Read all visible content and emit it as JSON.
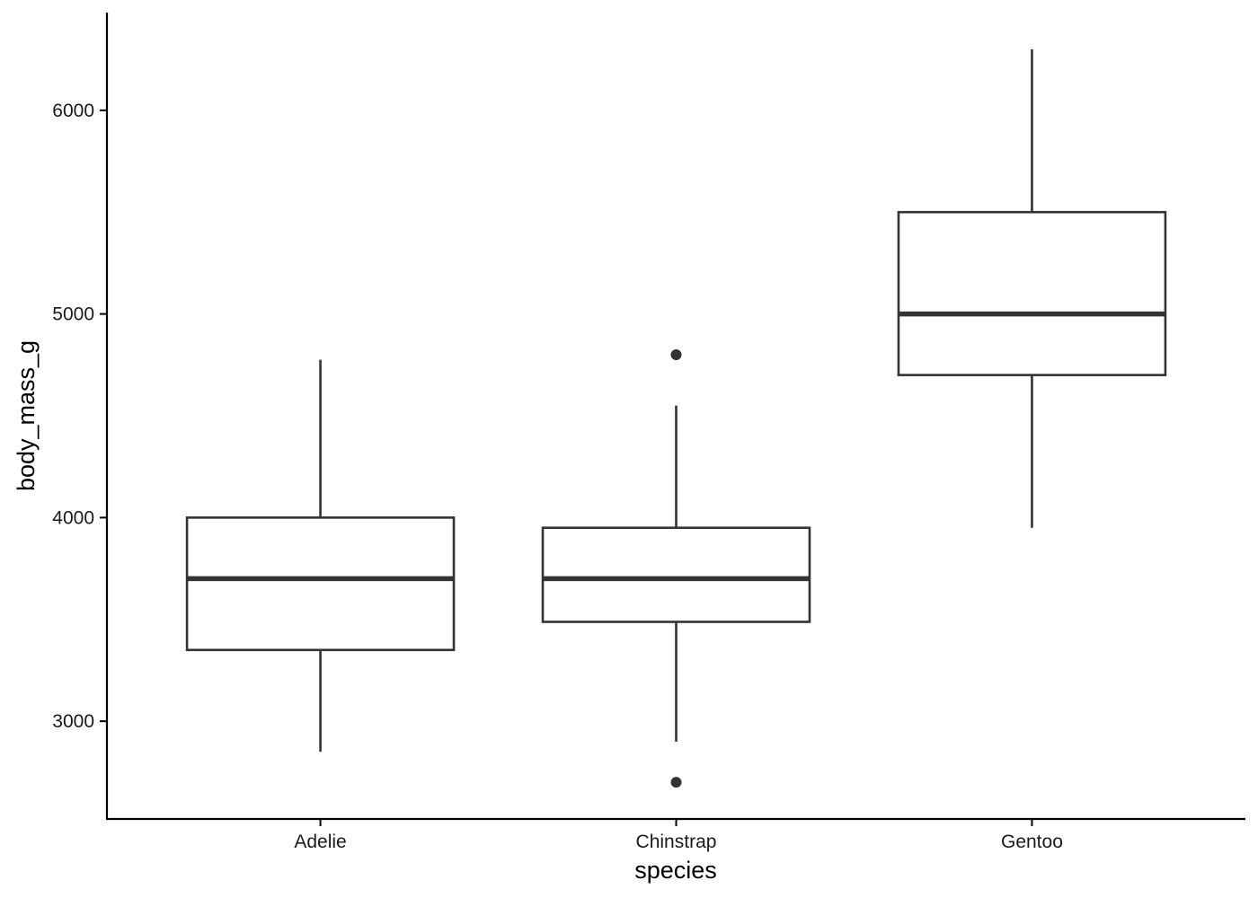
{
  "chart_data": {
    "type": "box",
    "title": "",
    "xlabel": "species",
    "ylabel": "body_mass_g",
    "ylim": [
      2520,
      6480
    ],
    "yticks": [
      3000,
      4000,
      5000,
      6000
    ],
    "grid": false,
    "legend": "none",
    "colors": {
      "box_stroke": "#333333",
      "box_fill": "#ffffff",
      "axis": "#000000"
    },
    "categories": [
      "Adelie",
      "Chinstrap",
      "Gentoo"
    ],
    "series": [
      {
        "category": "Adelie",
        "whisker_low": 2850,
        "q1": 3350,
        "median": 3700,
        "q3": 4000,
        "whisker_high": 4775,
        "outliers": []
      },
      {
        "category": "Chinstrap",
        "whisker_low": 2900,
        "q1": 3488,
        "median": 3700,
        "q3": 3950,
        "whisker_high": 4550,
        "outliers": [
          2700,
          4800
        ]
      },
      {
        "category": "Gentoo",
        "whisker_low": 3950,
        "q1": 4700,
        "median": 5000,
        "q3": 5500,
        "whisker_high": 6300,
        "outliers": []
      }
    ]
  }
}
